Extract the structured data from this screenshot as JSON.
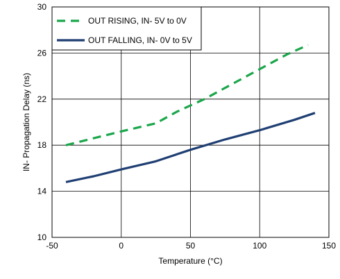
{
  "chart_data": {
    "type": "line",
    "xlabel": "Temperature (°C)",
    "ylabel": "IN- Propagation Delay (ns)",
    "xlim": [
      -50,
      150
    ],
    "ylim": [
      10,
      30
    ],
    "xticks": [
      -50,
      0,
      50,
      100,
      150
    ],
    "yticks": [
      10,
      14,
      18,
      22,
      26,
      30
    ],
    "xtick_labels": [
      "-50",
      "0",
      "50",
      "100",
      "150"
    ],
    "ytick_labels": [
      "10",
      "14",
      "18",
      "22",
      "26",
      "30"
    ],
    "grid": true,
    "legend_position": "top-left",
    "series": [
      {
        "name": "OUT RISING, IN- 5V to 0V",
        "style": "dashed",
        "color": "#1aa64a",
        "x": [
          -40,
          -20,
          0,
          25,
          40,
          60,
          80,
          100,
          120,
          135
        ],
        "y": [
          18.0,
          18.6,
          19.2,
          19.9,
          20.9,
          22.0,
          23.3,
          24.6,
          25.9,
          26.7
        ]
      },
      {
        "name": "OUT FALLING, IN- 0V to 5V",
        "style": "solid",
        "color": "#1f3f73",
        "x": [
          -40,
          -20,
          0,
          25,
          50,
          75,
          100,
          125,
          140
        ],
        "y": [
          14.8,
          15.3,
          15.9,
          16.6,
          17.6,
          18.5,
          19.3,
          20.2,
          20.8
        ]
      }
    ]
  }
}
